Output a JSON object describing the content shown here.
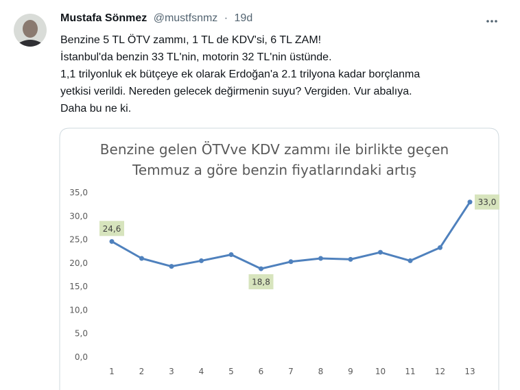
{
  "tweet": {
    "author": "Mustafa Sönmez",
    "handle": "@mustfsnmz",
    "separator": "·",
    "time": "19d",
    "text": [
      "Benzine 5 TL ÖTV zammı, 1 TL de KDV'si, 6 TL ZAM!",
      "İstanbul'da benzin 33 TL'nin, motorin 32 TL'nin üstünde.",
      "1,1 trilyonluk ek bütçeye ek olarak Erdoğan'a 2.1 trilyona kadar borçlanma",
      "yetkisi verildi. Nereden gelecek değirmenin suyu? Vergiden. Vur abalıya.",
      "Daha bu ne ki."
    ]
  },
  "chart_data": {
    "type": "line",
    "title": [
      "Benzine gelen ÖTVve KDV  zammı ile birlikte geçen",
      "Temmuz a göre benzin fiyatlarındaki artış"
    ],
    "categories": [
      "1",
      "2",
      "3",
      "4",
      "5",
      "6",
      "7",
      "8",
      "9",
      "10",
      "11",
      "12",
      "13"
    ],
    "values": [
      24.6,
      21.0,
      19.3,
      20.5,
      21.8,
      18.8,
      20.3,
      21.0,
      20.8,
      22.3,
      20.5,
      23.3,
      33.0
    ],
    "value_labels": [
      "24,6",
      null,
      null,
      null,
      null,
      "18,8",
      null,
      null,
      null,
      null,
      null,
      null,
      "33,0"
    ],
    "color": "#4f81bd",
    "label_color": "#d7e4bd",
    "ylim": [
      0,
      35
    ],
    "yticks": [
      {
        "value": 0,
        "label": "0,0"
      },
      {
        "value": 5,
        "label": "5,0"
      },
      {
        "value": 10,
        "label": "10,0"
      },
      {
        "value": 15,
        "label": "15,0"
      },
      {
        "value": 20,
        "label": "20,0"
      },
      {
        "value": 25,
        "label": "25,0"
      },
      {
        "value": 30,
        "label": "30,0"
      },
      {
        "value": 35,
        "label": "35,0"
      }
    ],
    "grid": false
  }
}
